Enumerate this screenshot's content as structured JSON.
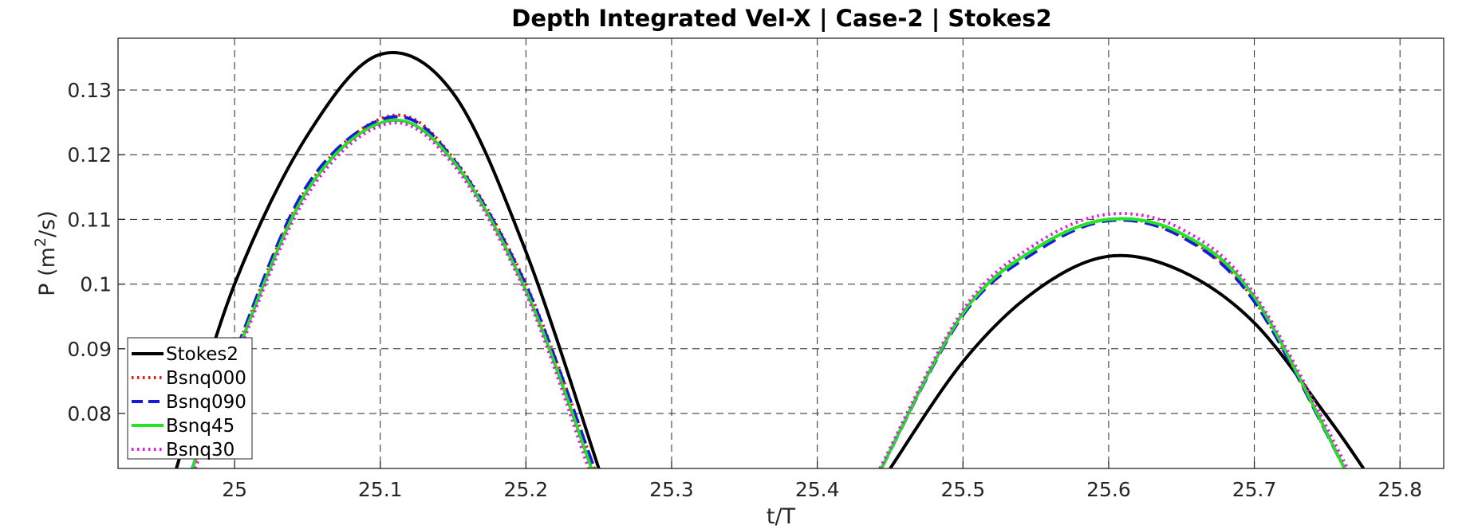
{
  "chart_data": {
    "type": "line",
    "title": "Depth Integrated Vel-X | Case-2 | Stokes2",
    "xlabel": "t/T",
    "ylabel": {
      "prefix": "P (m",
      "sup": "2",
      "suffix": "/s)"
    },
    "xlim": [
      24.92,
      25.83
    ],
    "ylim": [
      0.0715,
      0.138
    ],
    "xticks": [
      25,
      25.1,
      25.2,
      25.3,
      25.4,
      25.5,
      25.6,
      25.7,
      25.8
    ],
    "xtick_labels": [
      "25",
      "25.1",
      "25.2",
      "25.3",
      "25.4",
      "25.5",
      "25.6",
      "25.7",
      "25.8"
    ],
    "yticks": [
      0.08,
      0.09,
      0.1,
      0.11,
      0.12,
      0.13
    ],
    "ytick_labels": [
      "0.08",
      "0.09",
      "0.1",
      "0.11",
      "0.12",
      "0.13"
    ],
    "grid": true,
    "legend_position": "bottom-left",
    "series": [
      {
        "name": "Stokes2",
        "color": "#000000",
        "style": "solid",
        "x": [
          24.96,
          25.0,
          25.05,
          25.1,
          25.15,
          25.2,
          25.25,
          25.45,
          25.5,
          25.55,
          25.6,
          25.65,
          25.7,
          25.75,
          25.775
        ],
        "y": [
          0.0715,
          0.1,
          0.123,
          0.1355,
          0.1295,
          0.105,
          0.0715,
          0.0715,
          0.088,
          0.099,
          0.1043,
          0.102,
          0.094,
          0.0795,
          0.0715
        ]
      },
      {
        "name": "Bsnq000",
        "color": "#e8190d",
        "style": "dotted",
        "x": [
          24.971,
          25.0,
          25.05,
          25.107,
          25.15,
          25.2,
          25.247,
          25.444,
          25.5,
          25.55,
          25.6,
          25.65,
          25.7,
          25.762
        ],
        "y": [
          0.0715,
          0.089,
          0.115,
          0.126,
          0.1195,
          0.1,
          0.0715,
          0.0715,
          0.0955,
          0.1055,
          0.11,
          0.1075,
          0.0975,
          0.0715
        ]
      },
      {
        "name": "Bsnq090",
        "color": "#1a1adb",
        "style": "dashed",
        "x": [
          24.971,
          25.0,
          25.05,
          25.107,
          25.15,
          25.2,
          25.247,
          25.444,
          25.5,
          25.55,
          25.6,
          25.65,
          25.7,
          25.762
        ],
        "y": [
          0.0715,
          0.0892,
          0.1153,
          0.1258,
          0.1193,
          0.0998,
          0.0715,
          0.0715,
          0.0952,
          0.105,
          0.1098,
          0.1073,
          0.0973,
          0.0715
        ]
      },
      {
        "name": "Bsnq45",
        "color": "#22e622",
        "style": "solid",
        "x": [
          24.971,
          25.0,
          25.05,
          25.105,
          25.15,
          25.2,
          25.245,
          25.444,
          25.5,
          25.55,
          25.6,
          25.65,
          25.7,
          25.762
        ],
        "y": [
          0.0715,
          0.0885,
          0.1145,
          0.1252,
          0.119,
          0.099,
          0.0715,
          0.0715,
          0.0955,
          0.1055,
          0.11,
          0.1078,
          0.098,
          0.0715
        ]
      },
      {
        "name": "Bsnq30",
        "color": "#e619e6",
        "style": "dotted",
        "x": [
          24.973,
          25.0,
          25.05,
          25.105,
          25.15,
          25.2,
          25.243,
          25.443,
          25.5,
          25.55,
          25.6,
          25.65,
          25.7,
          25.764
        ],
        "y": [
          0.0715,
          0.0878,
          0.1138,
          0.1248,
          0.1185,
          0.0985,
          0.0715,
          0.0715,
          0.096,
          0.1062,
          0.1108,
          0.1085,
          0.0985,
          0.0715
        ]
      }
    ]
  }
}
